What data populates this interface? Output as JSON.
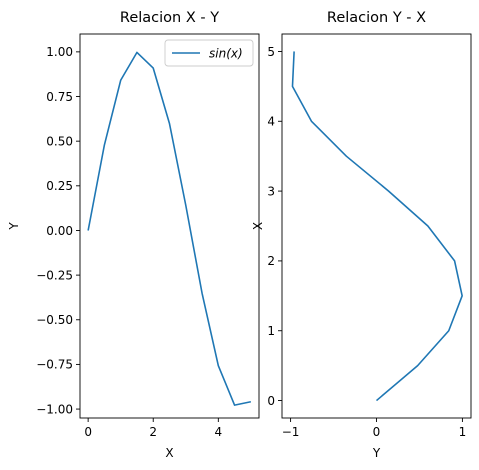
{
  "chart_data": [
    {
      "type": "line",
      "title": "Relacion X - Y",
      "xlabel": "X",
      "ylabel": "Y",
      "xlim": [
        -0.25,
        5.25
      ],
      "ylim": [
        -1.05,
        1.1
      ],
      "x_ticks": [
        0,
        2,
        4
      ],
      "x_tick_labels": [
        "0",
        "2",
        "4"
      ],
      "y_ticks": [
        -1.0,
        -0.75,
        -0.5,
        -0.25,
        0.0,
        0.25,
        0.5,
        0.75,
        1.0
      ],
      "y_tick_labels": [
        "−1.00",
        "−0.75",
        "−0.50",
        "−0.25",
        "0.00",
        "0.25",
        "0.50",
        "0.75",
        "1.00"
      ],
      "grid": false,
      "legend": {
        "placement": "top-right",
        "entries": [
          {
            "label": "sin(x)",
            "color": "#1f77b4"
          }
        ]
      },
      "series": [
        {
          "name": "sin(x)",
          "color": "#1f77b4",
          "x": [
            0,
            0.5,
            1.0,
            1.5,
            2.0,
            2.5,
            3.0,
            3.5,
            4.0,
            4.5,
            5.0
          ],
          "y": [
            0.0,
            0.479,
            0.841,
            0.997,
            0.909,
            0.598,
            0.141,
            -0.351,
            -0.757,
            -0.978,
            -0.959
          ]
        }
      ]
    },
    {
      "type": "line",
      "title": "Relacion Y - X",
      "xlabel": "Y",
      "ylabel": "X",
      "xlim": [
        -1.1,
        1.1
      ],
      "ylim": [
        -0.25,
        5.25
      ],
      "x_ticks": [
        -1,
        0,
        1
      ],
      "x_tick_labels": [
        "−1",
        "0",
        "1"
      ],
      "y_ticks": [
        0,
        1,
        2,
        3,
        4,
        5
      ],
      "y_tick_labels": [
        "0",
        "1",
        "2",
        "3",
        "4",
        "5"
      ],
      "grid": false,
      "series": [
        {
          "color": "#1f77b4",
          "x": [
            0.0,
            0.479,
            0.841,
            0.997,
            0.909,
            0.598,
            0.141,
            -0.351,
            -0.757,
            -0.978,
            -0.959
          ],
          "y": [
            0,
            0.5,
            1.0,
            1.5,
            2.0,
            2.5,
            3.0,
            3.5,
            4.0,
            4.5,
            5.0
          ]
        }
      ]
    }
  ]
}
